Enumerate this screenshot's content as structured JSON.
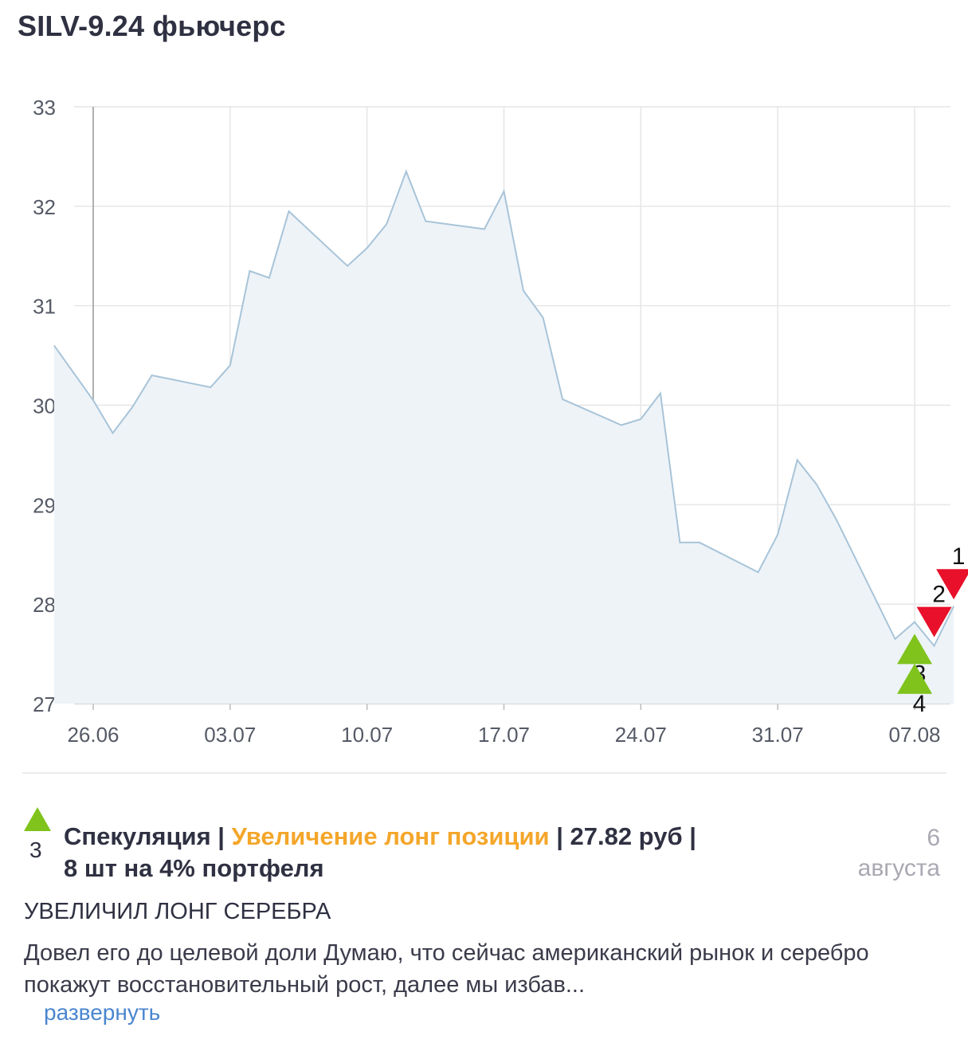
{
  "title": "SILV-9.24 фьючерс",
  "chart_data": {
    "type": "area",
    "yticks": [
      27,
      28,
      29,
      30,
      31,
      32,
      33
    ],
    "ylim": [
      27,
      33
    ],
    "xticks": [
      "26.06",
      "03.07",
      "10.07",
      "17.07",
      "24.07",
      "31.07",
      "07.08"
    ],
    "grid": true,
    "series": [
      {
        "values": [
          [
            "24.06",
            30.6
          ],
          [
            "26.06",
            30.05
          ],
          [
            "27.06",
            29.72
          ],
          [
            "28.06",
            29.98
          ],
          [
            "29.06",
            30.3
          ],
          [
            "02.07",
            30.18
          ],
          [
            "03.07",
            30.4
          ],
          [
            "04.07",
            31.35
          ],
          [
            "05.07",
            31.28
          ],
          [
            "06.07",
            31.95
          ],
          [
            "09.07",
            31.4
          ],
          [
            "10.07",
            31.58
          ],
          [
            "11.07",
            31.82
          ],
          [
            "12.07",
            32.35
          ],
          [
            "13.07",
            31.85
          ],
          [
            "16.07",
            31.77
          ],
          [
            "17.07",
            32.15
          ],
          [
            "18.07",
            31.15
          ],
          [
            "19.07",
            30.88
          ],
          [
            "20.07",
            30.06
          ],
          [
            "23.07",
            29.8
          ],
          [
            "24.07",
            29.86
          ],
          [
            "25.07",
            30.12
          ],
          [
            "26.07",
            28.62
          ],
          [
            "27.07",
            28.62
          ],
          [
            "30.07",
            28.32
          ],
          [
            "31.07",
            28.7
          ],
          [
            "01.08",
            29.45
          ],
          [
            "02.08",
            29.2
          ],
          [
            "03.08",
            28.85
          ],
          [
            "06.08",
            27.65
          ],
          [
            "07.08",
            27.82
          ],
          [
            "08.08",
            27.58
          ],
          [
            "09.08",
            27.98
          ]
        ]
      }
    ],
    "colors": {
      "line": "#a8c4d8",
      "fill": "#eef3f8",
      "grid": "#e6e6e6",
      "buy": "#7fc31c",
      "sell": "#e8102a"
    },
    "markers": [
      {
        "label": "1",
        "type": "sell",
        "date": "09.08",
        "value": 28.2
      },
      {
        "label": "2",
        "type": "sell",
        "date": "08.08",
        "value": 27.82
      },
      {
        "label": "3",
        "type": "buy",
        "date": "07.08",
        "value": 27.55
      },
      {
        "label": "4",
        "type": "buy",
        "date": "07.08",
        "value": 27.25
      }
    ]
  },
  "post": {
    "icon": "triangle-up-icon",
    "number": "3",
    "category": "Спекуляция",
    "sep1": " | ",
    "action": "Увеличение лонг позиции",
    "sep2": " | ",
    "price": "27.82 руб",
    "sep3": " | ",
    "qty": "8 шт на 4% портфеля",
    "date_day": "6",
    "date_month": "августа",
    "subtitle": "УВЕЛИЧИЛ ЛОНГ СЕРЕБРА",
    "text": "Довел его до целевой доли Думаю, что сейчас американский рынок и серебро покажут восстановительный рост, далее мы избав...",
    "expand": "развернуть"
  }
}
